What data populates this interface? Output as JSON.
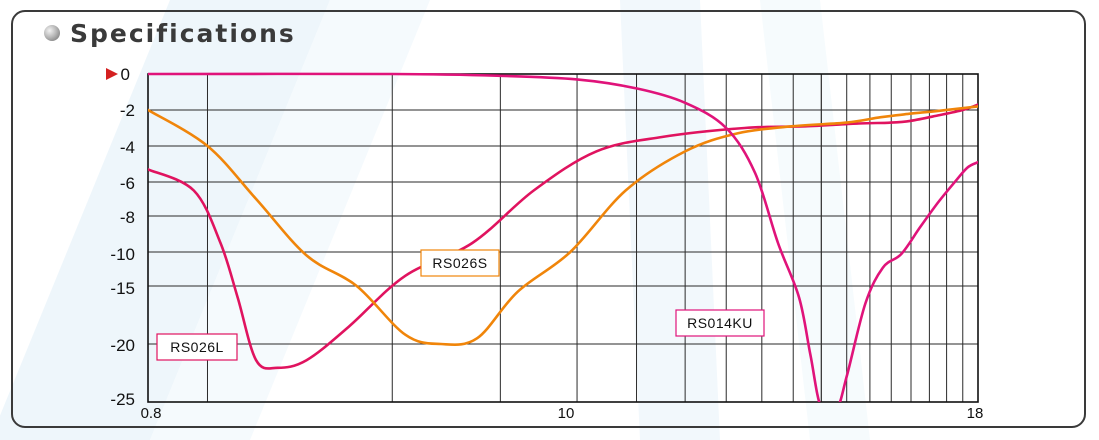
{
  "header": {
    "title": "Specifications"
  },
  "chart_data": {
    "type": "line",
    "xscale": "log",
    "xlim": [
      0.8,
      18
    ],
    "x_tick_labels": [
      "0.8",
      "10",
      "18"
    ],
    "y_tick_labels": [
      "0",
      "-2",
      "-4",
      "-6",
      "-8",
      "-10",
      "-15",
      "-20",
      "-25"
    ],
    "zero_marker_color": "#d42020",
    "grid": true,
    "series": [
      {
        "name": "RS026L",
        "color": "#e0135f",
        "points": [
          [
            0.8,
            -5.3
          ],
          [
            0.95,
            -6.5
          ],
          [
            1.05,
            -9.5
          ],
          [
            1.12,
            -16
          ],
          [
            1.2,
            -21.5
          ],
          [
            1.3,
            -22.2
          ],
          [
            1.45,
            -21.5
          ],
          [
            1.7,
            -18.5
          ],
          [
            2.1,
            -13.5
          ],
          [
            2.7,
            -9.5
          ],
          [
            3.4,
            -6.5
          ],
          [
            4.3,
            -4.3
          ],
          [
            5.5,
            -3.5
          ],
          [
            7.5,
            -3.0
          ],
          [
            9.5,
            -2.9
          ],
          [
            11.5,
            -2.75
          ],
          [
            13,
            -2.7
          ],
          [
            14,
            -2.6
          ],
          [
            15.5,
            -2.3
          ],
          [
            17,
            -2.0
          ],
          [
            18,
            -1.7
          ]
        ]
      },
      {
        "name": "RS026S",
        "color": "#f0850a",
        "points": [
          [
            0.8,
            -2.0
          ],
          [
            1.0,
            -4.0
          ],
          [
            1.2,
            -7.0
          ],
          [
            1.45,
            -10.5
          ],
          [
            1.75,
            -15
          ],
          [
            2.1,
            -19.2
          ],
          [
            2.4,
            -20.0
          ],
          [
            2.75,
            -19.5
          ],
          [
            3.2,
            -15.5
          ],
          [
            3.9,
            -10
          ],
          [
            4.8,
            -6.5
          ],
          [
            6.0,
            -4.3
          ],
          [
            7.3,
            -3.3
          ],
          [
            9,
            -2.9
          ],
          [
            11,
            -2.7
          ],
          [
            12.5,
            -2.4
          ],
          [
            14,
            -2.2
          ],
          [
            15.5,
            -2.05
          ],
          [
            18,
            -1.8
          ]
        ]
      },
      {
        "name": "RS014KU",
        "color": "#e0137a",
        "points": [
          [
            0.8,
            0.0
          ],
          [
            2.0,
            0.0
          ],
          [
            3.0,
            -0.1
          ],
          [
            4.0,
            -0.3
          ],
          [
            5.0,
            -0.8
          ],
          [
            6.0,
            -1.6
          ],
          [
            7.0,
            -3.0
          ],
          [
            7.8,
            -5.5
          ],
          [
            8.5,
            -9.5
          ],
          [
            9.2,
            -16
          ],
          [
            9.6,
            -21
          ],
          [
            10.0,
            -26
          ],
          [
            10.6,
            -26
          ],
          [
            11.0,
            -23
          ],
          [
            11.8,
            -16.5
          ],
          [
            12.6,
            -12.3
          ],
          [
            13.5,
            -10.3
          ],
          [
            14.5,
            -8.6
          ],
          [
            15.5,
            -7.2
          ],
          [
            16.5,
            -6.0
          ],
          [
            17.3,
            -5.2
          ],
          [
            18,
            -4.9
          ]
        ]
      }
    ],
    "labels": [
      {
        "text": "RS026L",
        "color": "#e0135f"
      },
      {
        "text": "RS026S",
        "color": "#f0850a"
      },
      {
        "text": "RS014KU",
        "color": "#e0137a"
      }
    ]
  }
}
